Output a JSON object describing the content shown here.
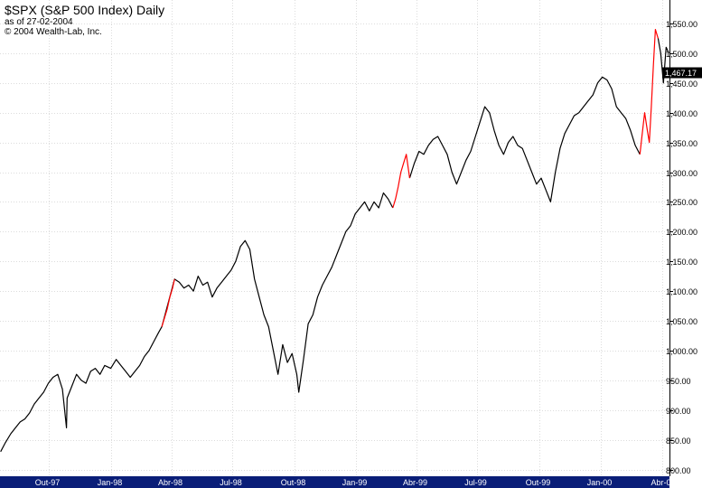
{
  "header": {
    "title": "$SPX (S&P 500 Index) Daily",
    "as_of": "as of 27-02-2004",
    "copyright": "© 2004 Wealth-Lab, Inc."
  },
  "colors": {
    "price": "#000000",
    "highlight": "#ff0000",
    "grid": "#dcdcdc",
    "time_axis": "#0a1e78",
    "axis_text": "#000000",
    "last_price_bg": "#000000",
    "last_price_text": "#ffffff"
  },
  "chart_data": {
    "type": "line",
    "title": "$SPX (S&P 500 Index) Daily",
    "xlabel": "",
    "ylabel": "",
    "ylim": [
      800,
      1560
    ],
    "y_ticks": [
      800,
      850,
      900,
      950,
      1000,
      1050,
      1100,
      1150,
      1200,
      1250,
      1300,
      1350,
      1400,
      1450,
      1500,
      1550
    ],
    "y_tick_labels": [
      "800.00",
      "850.00",
      "900.00",
      "950.00",
      "1,000.00",
      "1,050.00",
      "1,100.00",
      "1,150.00",
      "1,200.00",
      "1,250.00",
      "1,300.00",
      "1,350.00",
      "1,400.00",
      "1,450.00",
      "1,500.00",
      "1,550.00"
    ],
    "x_range": [
      "1997-07-20",
      "2000-04-12"
    ],
    "x_ticks": [
      "1997-10-01",
      "1998-01-01",
      "1998-04-01",
      "1998-07-01",
      "1998-10-01",
      "1999-01-01",
      "1999-04-01",
      "1999-07-01",
      "1999-10-01",
      "2000-01-01",
      "2000-04-01"
    ],
    "x_tick_labels": [
      "Out-97",
      "Jan-98",
      "Abr-98",
      "Jul-98",
      "Out-98",
      "Jan-99",
      "Abr-99",
      "Jul-99",
      "Out-99",
      "Jan-00",
      "Abr-0"
    ],
    "grid": true,
    "last_value": 1467.17,
    "last_value_label": "1,467.17",
    "series": [
      {
        "color": "black",
        "x": [
          "1997-07-21",
          "1997-07-28",
          "1997-08-05",
          "1997-08-12",
          "1997-08-19",
          "1997-08-26",
          "1997-09-02",
          "1997-09-09",
          "1997-09-16",
          "1997-09-23",
          "1997-09-30",
          "1997-10-07",
          "1997-10-14",
          "1997-10-21",
          "1997-10-27",
          "1997-10-28",
          "1997-11-04",
          "1997-11-11",
          "1997-11-18",
          "1997-11-25",
          "1997-12-02",
          "1997-12-09",
          "1997-12-16",
          "1997-12-23",
          "1998-01-01",
          "1998-01-09",
          "1998-01-16",
          "1998-01-23",
          "1998-01-30",
          "1998-02-06",
          "1998-02-13",
          "1998-02-20",
          "1998-02-27",
          "1998-03-06",
          "1998-03-13",
          "1998-03-18",
          "1998-04-06",
          "1998-04-13",
          "1998-04-20",
          "1998-04-27",
          "1998-05-04",
          "1998-05-11",
          "1998-05-18",
          "1998-05-25",
          "1998-06-01",
          "1998-06-08",
          "1998-06-15",
          "1998-06-22",
          "1998-06-29",
          "1998-07-06",
          "1998-07-13",
          "1998-07-20",
          "1998-07-27",
          "1998-08-03",
          "1998-08-10",
          "1998-08-17",
          "1998-08-24",
          "1998-08-31",
          "1998-09-07",
          "1998-09-14",
          "1998-09-21",
          "1998-09-28",
          "1998-10-05",
          "1998-10-08",
          "1998-10-15",
          "1998-10-22",
          "1998-10-29",
          "1998-11-05",
          "1998-11-12",
          "1998-11-19",
          "1998-11-26",
          "1998-12-03",
          "1998-12-10",
          "1998-12-17",
          "1998-12-24",
          "1998-12-31",
          "1999-01-07",
          "1999-01-14",
          "1999-01-21",
          "1999-01-28",
          "1999-02-04",
          "1999-02-11",
          "1999-02-18",
          "1999-02-25"
        ],
        "values": [
          830,
          845,
          860,
          870,
          880,
          885,
          895,
          910,
          920,
          930,
          945,
          955,
          960,
          935,
          870,
          920,
          940,
          960,
          950,
          945,
          965,
          970,
          960,
          975,
          970,
          985,
          975,
          965,
          955,
          965,
          975,
          990,
          1000,
          1015,
          1030,
          1040,
          1120,
          1115,
          1105,
          1110,
          1100,
          1125,
          1110,
          1115,
          1090,
          1105,
          1115,
          1125,
          1135,
          1150,
          1175,
          1185,
          1170,
          1120,
          1090,
          1060,
          1040,
          1000,
          960,
          1010,
          980,
          995,
          960,
          930,
          985,
          1045,
          1060,
          1090,
          1110,
          1125,
          1140,
          1160,
          1180,
          1200,
          1210,
          1230,
          1240,
          1250,
          1235,
          1250,
          1240,
          1265,
          1255,
          1240
        ]
      },
      {
        "color": "black",
        "x": [
          "1999-03-22",
          "1999-03-29",
          "1999-04-05",
          "1999-04-12",
          "1999-04-19",
          "1999-04-26",
          "1999-05-03",
          "1999-05-10",
          "1999-05-17",
          "1999-05-24",
          "1999-05-31",
          "1999-06-07",
          "1999-06-14",
          "1999-06-21",
          "1999-06-28",
          "1999-07-05",
          "1999-07-12",
          "1999-07-19",
          "1999-07-26",
          "1999-08-02",
          "1999-08-09",
          "1999-08-16",
          "1999-08-23",
          "1999-08-30",
          "1999-09-06",
          "1999-09-13",
          "1999-09-20",
          "1999-09-27",
          "1999-10-04",
          "1999-10-11",
          "1999-10-18",
          "1999-10-25",
          "1999-11-01",
          "1999-11-08",
          "1999-11-15",
          "1999-11-22",
          "1999-11-29",
          "1999-12-06",
          "1999-12-13",
          "1999-12-20",
          "1999-12-27",
          "2000-01-03",
          "2000-01-10",
          "2000-01-17",
          "2000-01-24",
          "2000-01-31",
          "2000-02-07",
          "2000-02-14",
          "2000-02-21",
          "2000-02-28"
        ],
        "values": [
          1290,
          1315,
          1335,
          1330,
          1345,
          1355,
          1360,
          1345,
          1330,
          1300,
          1280,
          1300,
          1320,
          1335,
          1360,
          1385,
          1410,
          1400,
          1370,
          1345,
          1330,
          1350,
          1360,
          1345,
          1340,
          1320,
          1300,
          1280,
          1290,
          1270,
          1250,
          1300,
          1340,
          1365,
          1380,
          1395,
          1400,
          1410,
          1420,
          1430,
          1450,
          1460,
          1455,
          1440,
          1410,
          1400,
          1390,
          1370,
          1345,
          1330
        ]
      },
      {
        "color": "black",
        "x": [
          "2000-03-26",
          "2000-03-30",
          "2000-04-03",
          "2000-04-07",
          "2000-04-11"
        ],
        "values": [
          1525,
          1500,
          1450,
          1510,
          1500
        ]
      },
      {
        "color": "red",
        "x": [
          "1998-03-18",
          "1998-03-22",
          "1998-03-26",
          "1998-03-30",
          "1998-04-03",
          "1998-04-06"
        ],
        "values": [
          1040,
          1055,
          1070,
          1090,
          1105,
          1120
        ]
      },
      {
        "color": "red",
        "x": [
          "1999-02-25",
          "1999-03-01",
          "1999-03-05",
          "1999-03-09",
          "1999-03-13",
          "1999-03-17",
          "1999-03-22"
        ],
        "values": [
          1240,
          1255,
          1275,
          1300,
          1315,
          1330,
          1290
        ]
      },
      {
        "color": "red",
        "x": [
          "2000-02-28",
          "2000-03-02",
          "2000-03-06",
          "2000-03-10",
          "2000-03-13",
          "2000-03-16",
          "2000-03-19",
          "2000-03-22",
          "2000-03-26"
        ],
        "values": [
          1330,
          1360,
          1400,
          1370,
          1350,
          1410,
          1480,
          1540,
          1525
        ]
      }
    ]
  }
}
